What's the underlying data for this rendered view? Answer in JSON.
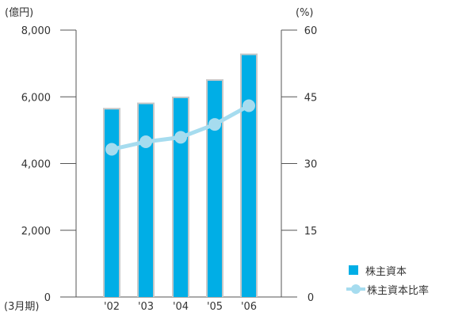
{
  "chart_data": {
    "type": "bar",
    "categories": [
      "'02",
      "'03",
      "'04",
      "'05",
      "'06"
    ],
    "x_axis_prefix": "(3月期)",
    "series": [
      {
        "name": "株主資本",
        "type": "bar",
        "axis": "left",
        "values": [
          5620,
          5780,
          5960,
          6480,
          7250
        ]
      },
      {
        "name": "株主資本比率",
        "type": "line",
        "axis": "right",
        "values": [
          33.2,
          34.9,
          35.9,
          38.8,
          43.0
        ]
      }
    ],
    "left_axis": {
      "unit": "(億円)",
      "ticks": [
        "0",
        "2,000",
        "4,000",
        "6,000",
        "8,000"
      ],
      "range": [
        0,
        8000
      ]
    },
    "right_axis": {
      "unit": "(%)",
      "ticks": [
        "0",
        "15",
        "30",
        "45",
        "60"
      ],
      "range": [
        0,
        60
      ]
    },
    "grid": false,
    "legend_position": "bottom-right"
  },
  "colors": {
    "bar": "#00aee6",
    "bar_edge": "#c8c8c8",
    "line": "#a6dcef",
    "axis": "#555555",
    "text": "#333333"
  },
  "legend": {
    "bar_label": "株主資本",
    "line_label": "株主資本比率"
  }
}
